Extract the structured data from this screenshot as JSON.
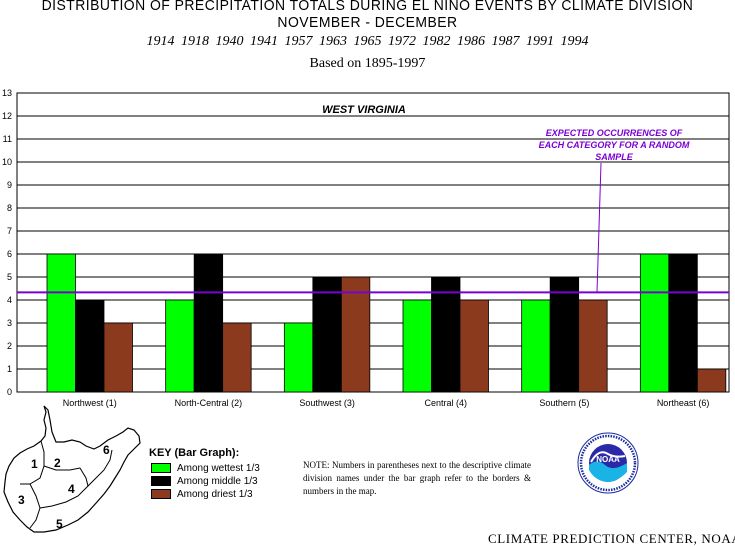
{
  "header": {
    "title_line1": "DISTRIBUTION OF PRECIPITATION TOTALS DURING EL NINO EVENTS BY CLIMATE DIVISION",
    "title_line2": "NOVEMBER - DECEMBER",
    "years": "1914 1918 1940 1941 1957 1963 1965 1972 1982 1986 1987 1991 1994",
    "basis": "Based on 1895-1997"
  },
  "chart_data": {
    "type": "bar",
    "title": "WEST VIRGINIA",
    "categories": [
      "Northwest (1)",
      "North-Central (2)",
      "Southwest (3)",
      "Central (4)",
      "Southern (5)",
      "Northeast (6)"
    ],
    "series": [
      {
        "name": "Among wettest 1/3",
        "color": "#00ff00",
        "values": [
          6,
          4,
          3,
          4,
          4,
          6
        ]
      },
      {
        "name": "Among middle 1/3",
        "color": "#000000",
        "values": [
          4,
          6,
          5,
          5,
          5,
          6
        ]
      },
      {
        "name": "Among driest 1/3",
        "color": "#8b3a1e",
        "values": [
          3,
          3,
          5,
          4,
          4,
          1
        ]
      }
    ],
    "y_ticks": [
      "0",
      "1",
      "2",
      "3",
      "4",
      "5",
      "6",
      "7",
      "8",
      "9",
      "10",
      "11",
      "12",
      "13"
    ],
    "ylim": [
      0,
      13
    ],
    "grid": true,
    "expected_line": {
      "value": 4.33,
      "color": "#7b00d4",
      "label_lines": [
        "EXPECTED OCCURRENCES OF",
        "EACH CATEGORY FOR A RANDOM",
        "SAMPLE"
      ]
    }
  },
  "key": {
    "title": "KEY (Bar Graph):",
    "items": [
      {
        "label": "Among wettest 1/3",
        "color": "#00ff00"
      },
      {
        "label": "Among middle 1/3",
        "color": "#000000"
      },
      {
        "label": "Among driest 1/3",
        "color": "#8b3a1e"
      }
    ]
  },
  "note": "NOTE: Numbers in parentheses next to the descriptive climate division names under the bar graph refer to the borders & numbers in the map.",
  "map": {
    "division_numbers": [
      "1",
      "2",
      "3",
      "4",
      "5",
      "6"
    ]
  },
  "logo": {
    "text": "NOAA"
  },
  "footer": "CLIMATE PREDICTION CENTER, NOAA"
}
